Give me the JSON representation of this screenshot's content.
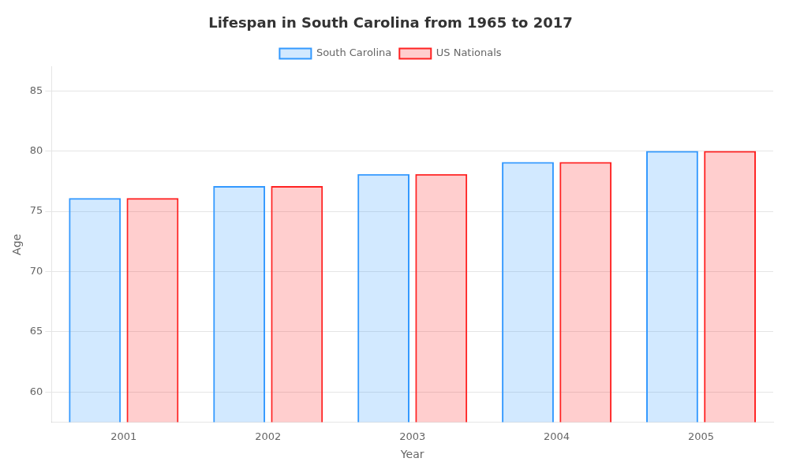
{
  "chart_data": {
    "type": "bar",
    "title": "Lifespan in South Carolina from 1965 to 2017",
    "xlabel": "Year",
    "ylabel": "Age",
    "categories": [
      "2001",
      "2002",
      "2003",
      "2004",
      "2005"
    ],
    "series": [
      {
        "name": "South Carolina",
        "color": "#3399ff",
        "values": [
          76.1,
          77.1,
          78.1,
          79.1,
          80.0
        ]
      },
      {
        "name": "US Nationals",
        "color": "#ff2222",
        "values": [
          76.1,
          77.1,
          78.1,
          79.1,
          80.0
        ]
      }
    ],
    "ylim": [
      57.5,
      87
    ],
    "yticks": [
      60,
      65,
      70,
      75,
      80,
      85
    ],
    "grid": true,
    "legend": "top"
  }
}
